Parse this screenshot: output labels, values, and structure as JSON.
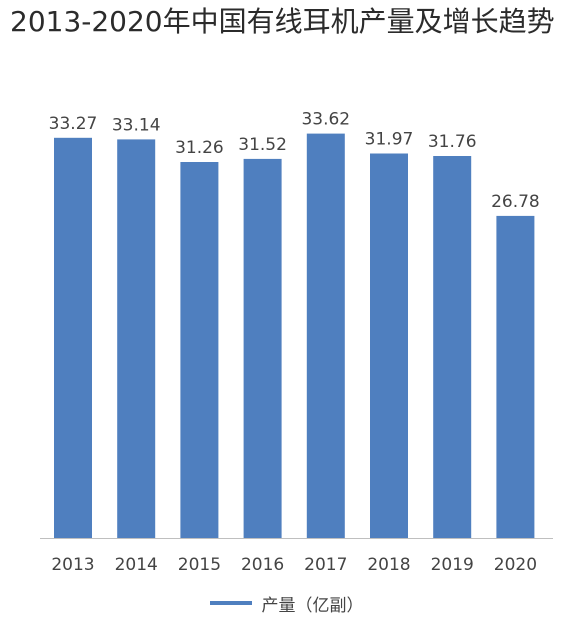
{
  "chart_data": {
    "type": "bar",
    "title": "2013-2020年中国有线耳机产量及增长趋势",
    "categories": [
      "2013",
      "2014",
      "2015",
      "2016",
      "2017",
      "2018",
      "2019",
      "2020"
    ],
    "series": [
      {
        "name": "产量（亿副）",
        "values": [
          33.27,
          33.14,
          31.26,
          31.52,
          33.62,
          31.97,
          31.76,
          26.78
        ]
      }
    ],
    "data_labels": [
      "33.27",
      "33.14",
      "31.26",
      "31.52",
      "33.62",
      "31.97",
      "31.76",
      "26.78"
    ],
    "ylim": [
      0,
      36.5
    ],
    "grid": false,
    "legend_position": "bottom",
    "bar_color": "#4f7fbf",
    "axis_color": "#bfbfbf"
  }
}
